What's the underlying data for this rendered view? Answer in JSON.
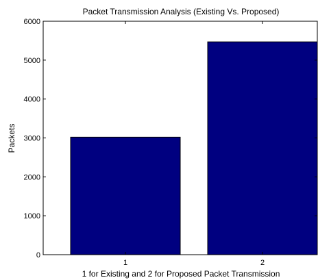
{
  "chart_data": {
    "type": "bar",
    "title": "Packet Transmission Analysis (Existing Vs. Proposed)",
    "xlabel": "1 for Existing and 2 for Proposed Packet Transmission",
    "ylabel": "Packets",
    "categories": [
      "1",
      "2"
    ],
    "values": [
      3020,
      5470
    ],
    "ylim": [
      0,
      6000
    ],
    "yticks": [
      "0",
      "1000",
      "2000",
      "3000",
      "4000",
      "5000",
      "6000"
    ],
    "grid": false,
    "legend": "none",
    "bar_color": "#000080",
    "bar_edge_color": "#000000"
  }
}
